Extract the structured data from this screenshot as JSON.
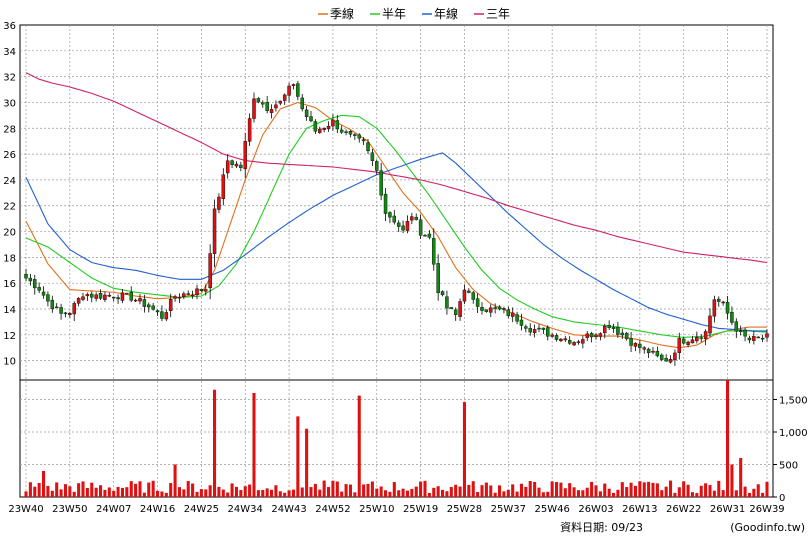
{
  "chart_data": {
    "type": "candlestick",
    "legend": [
      {
        "label": "季線",
        "color": "#e07020"
      },
      {
        "label": "半年",
        "color": "#22cc22"
      },
      {
        "label": "年線",
        "color": "#2060d0"
      },
      {
        "label": "三年",
        "color": "#d0206a"
      }
    ],
    "price_axis": {
      "ylim": [
        8.5,
        36
      ],
      "ticks": [
        10,
        12,
        14,
        16,
        18,
        20,
        22,
        24,
        26,
        28,
        30,
        32,
        34,
        36
      ]
    },
    "volume_axis": {
      "ylim": [
        0,
        1800
      ],
      "ticks": [
        0,
        500,
        1000,
        1500
      ],
      "tick_labels": [
        "0",
        "500",
        "1,000",
        "1,500"
      ]
    },
    "x_ticks": [
      "23W40",
      "23W50",
      "24W07",
      "24W16",
      "24W25",
      "24W34",
      "24W43",
      "24W52",
      "25W10",
      "25W19",
      "25W28",
      "25W37",
      "25W46",
      "26W03",
      "26W13",
      "26W22",
      "26W31",
      "26W39"
    ],
    "x_tick_index": [
      0,
      10,
      20,
      30,
      40,
      50,
      60,
      70,
      80,
      90,
      100,
      110,
      120,
      130,
      140,
      150,
      160,
      169
    ],
    "price_anchors": [
      [
        0,
        16.4
      ],
      [
        3,
        15.6
      ],
      [
        5,
        14.6
      ],
      [
        8,
        13.6
      ],
      [
        10,
        13.8
      ],
      [
        13,
        15.2
      ],
      [
        16,
        15.0
      ],
      [
        20,
        15.1
      ],
      [
        24,
        14.9
      ],
      [
        28,
        14.2
      ],
      [
        31,
        13.4
      ],
      [
        34,
        15.0
      ],
      [
        38,
        15.3
      ],
      [
        41,
        15.6
      ],
      [
        43,
        21.5
      ],
      [
        46,
        25.5
      ],
      [
        49,
        25.0
      ],
      [
        52,
        30.5
      ],
      [
        55,
        29.6
      ],
      [
        58,
        30.0
      ],
      [
        61,
        31.5
      ],
      [
        63,
        29.5
      ],
      [
        66,
        27.8
      ],
      [
        70,
        28.5
      ],
      [
        73,
        27.5
      ],
      [
        77,
        26.8
      ],
      [
        80,
        24.7
      ],
      [
        82,
        21.5
      ],
      [
        84,
        20.9
      ],
      [
        86,
        20.0
      ],
      [
        88,
        21.3
      ],
      [
        90,
        20.0
      ],
      [
        92,
        19.5
      ],
      [
        94,
        15.5
      ],
      [
        96,
        14.1
      ],
      [
        98,
        13.5
      ],
      [
        100,
        15.7
      ],
      [
        102,
        14.5
      ],
      [
        105,
        14.0
      ],
      [
        108,
        13.9
      ],
      [
        111,
        13.5
      ],
      [
        115,
        12.5
      ],
      [
        120,
        12.0
      ],
      [
        125,
        11.5
      ],
      [
        128,
        11.9
      ],
      [
        130,
        12.2
      ],
      [
        133,
        12.8
      ],
      [
        136,
        12.0
      ],
      [
        139,
        11.2
      ],
      [
        142,
        10.7
      ],
      [
        145,
        10.0
      ],
      [
        147,
        10.2
      ],
      [
        149,
        11.5
      ],
      [
        152,
        11.8
      ],
      [
        155,
        12.2
      ],
      [
        157,
        14.8
      ],
      [
        159,
        14.3
      ],
      [
        161,
        13.0
      ],
      [
        163,
        12.0
      ],
      [
        165,
        11.6
      ],
      [
        169,
        11.8
      ]
    ],
    "ma_anchors": {
      "季線": [
        [
          0,
          20.8
        ],
        [
          5,
          17.5
        ],
        [
          10,
          15.5
        ],
        [
          15,
          15.4
        ],
        [
          20,
          15.3
        ],
        [
          25,
          15.0
        ],
        [
          30,
          14.8
        ],
        [
          35,
          14.9
        ],
        [
          40,
          15.2
        ],
        [
          43,
          17.0
        ],
        [
          46,
          20.0
        ],
        [
          50,
          24.0
        ],
        [
          54,
          27.5
        ],
        [
          58,
          29.5
        ],
        [
          62,
          30.0
        ],
        [
          66,
          29.6
        ],
        [
          70,
          28.6
        ],
        [
          74,
          27.9
        ],
        [
          78,
          27.0
        ],
        [
          82,
          25.0
        ],
        [
          86,
          23.0
        ],
        [
          90,
          21.5
        ],
        [
          94,
          19.6
        ],
        [
          98,
          17.2
        ],
        [
          102,
          15.5
        ],
        [
          106,
          14.4
        ],
        [
          110,
          13.8
        ],
        [
          115,
          13.1
        ],
        [
          120,
          12.5
        ],
        [
          125,
          12.0
        ],
        [
          130,
          11.9
        ],
        [
          135,
          11.9
        ],
        [
          140,
          11.6
        ],
        [
          145,
          11.2
        ],
        [
          149,
          11.0
        ],
        [
          153,
          11.2
        ],
        [
          157,
          12.0
        ],
        [
          161,
          12.4
        ],
        [
          165,
          12.6
        ],
        [
          169,
          12.6
        ]
      ],
      "半年": [
        [
          0,
          19.5
        ],
        [
          5,
          18.8
        ],
        [
          10,
          17.6
        ],
        [
          15,
          16.4
        ],
        [
          20,
          15.6
        ],
        [
          25,
          15.3
        ],
        [
          30,
          15.1
        ],
        [
          35,
          14.9
        ],
        [
          40,
          15.0
        ],
        [
          44,
          15.8
        ],
        [
          48,
          17.5
        ],
        [
          52,
          20.0
        ],
        [
          56,
          23.0
        ],
        [
          60,
          26.0
        ],
        [
          64,
          28.0
        ],
        [
          68,
          28.6
        ],
        [
          72,
          29.0
        ],
        [
          76,
          28.9
        ],
        [
          80,
          28.0
        ],
        [
          84,
          26.4
        ],
        [
          88,
          24.6
        ],
        [
          92,
          22.8
        ],
        [
          96,
          20.8
        ],
        [
          100,
          18.8
        ],
        [
          104,
          17.0
        ],
        [
          108,
          15.6
        ],
        [
          112,
          14.7
        ],
        [
          116,
          14.0
        ],
        [
          120,
          13.4
        ],
        [
          125,
          13.0
        ],
        [
          130,
          12.8
        ],
        [
          135,
          12.6
        ],
        [
          140,
          12.3
        ],
        [
          145,
          12.0
        ],
        [
          150,
          11.8
        ],
        [
          155,
          11.9
        ],
        [
          160,
          12.3
        ],
        [
          165,
          12.3
        ],
        [
          169,
          12.2
        ]
      ],
      "年線": [
        [
          0,
          24.2
        ],
        [
          5,
          20.6
        ],
        [
          10,
          18.6
        ],
        [
          15,
          17.6
        ],
        [
          20,
          17.2
        ],
        [
          25,
          17.0
        ],
        [
          30,
          16.6
        ],
        [
          35,
          16.3
        ],
        [
          40,
          16.3
        ],
        [
          45,
          17.0
        ],
        [
          50,
          18.2
        ],
        [
          55,
          19.5
        ],
        [
          60,
          20.7
        ],
        [
          65,
          21.8
        ],
        [
          70,
          22.8
        ],
        [
          75,
          23.6
        ],
        [
          80,
          24.4
        ],
        [
          85,
          25.0
        ],
        [
          90,
          25.6
        ],
        [
          95,
          26.1
        ],
        [
          98,
          25.3
        ],
        [
          102,
          24.0
        ],
        [
          106,
          22.7
        ],
        [
          110,
          21.4
        ],
        [
          114,
          20.2
        ],
        [
          118,
          19.0
        ],
        [
          122,
          18.0
        ],
        [
          126,
          17.1
        ],
        [
          130,
          16.3
        ],
        [
          134,
          15.5
        ],
        [
          138,
          14.8
        ],
        [
          142,
          14.1
        ],
        [
          146,
          13.6
        ],
        [
          150,
          13.2
        ],
        [
          154,
          12.8
        ],
        [
          158,
          12.5
        ],
        [
          162,
          12.4
        ],
        [
          166,
          12.3
        ],
        [
          169,
          12.3
        ]
      ],
      "三年": [
        [
          0,
          32.3
        ],
        [
          3,
          31.8
        ],
        [
          6,
          31.5
        ],
        [
          10,
          31.2
        ],
        [
          15,
          30.7
        ],
        [
          20,
          30.1
        ],
        [
          25,
          29.3
        ],
        [
          30,
          28.5
        ],
        [
          35,
          27.7
        ],
        [
          40,
          26.9
        ],
        [
          45,
          26.0
        ],
        [
          50,
          25.5
        ],
        [
          55,
          25.3
        ],
        [
          60,
          25.2
        ],
        [
          65,
          25.1
        ],
        [
          70,
          25.0
        ],
        [
          75,
          24.8
        ],
        [
          80,
          24.6
        ],
        [
          85,
          24.3
        ],
        [
          90,
          24.0
        ],
        [
          95,
          23.6
        ],
        [
          100,
          23.1
        ],
        [
          105,
          22.6
        ],
        [
          110,
          22.0
        ],
        [
          115,
          21.5
        ],
        [
          120,
          21.0
        ],
        [
          125,
          20.5
        ],
        [
          130,
          20.1
        ],
        [
          135,
          19.6
        ],
        [
          140,
          19.2
        ],
        [
          145,
          18.8
        ],
        [
          150,
          18.4
        ],
        [
          155,
          18.2
        ],
        [
          160,
          18.0
        ],
        [
          165,
          17.8
        ],
        [
          169,
          17.6
        ]
      ]
    },
    "volume_spikes": [
      [
        43,
        1650
      ],
      [
        52,
        1600
      ],
      [
        62,
        1240
      ],
      [
        64,
        1050
      ],
      [
        76,
        1560
      ],
      [
        100,
        1460
      ],
      [
        160,
        1900
      ],
      [
        163,
        600
      ],
      [
        161,
        500
      ],
      [
        34,
        500
      ],
      [
        4,
        400
      ]
    ],
    "volume_base": 150
  },
  "footer": {
    "date_label": "資料日期: 09/23",
    "source": "(Goodinfo.tw)"
  }
}
